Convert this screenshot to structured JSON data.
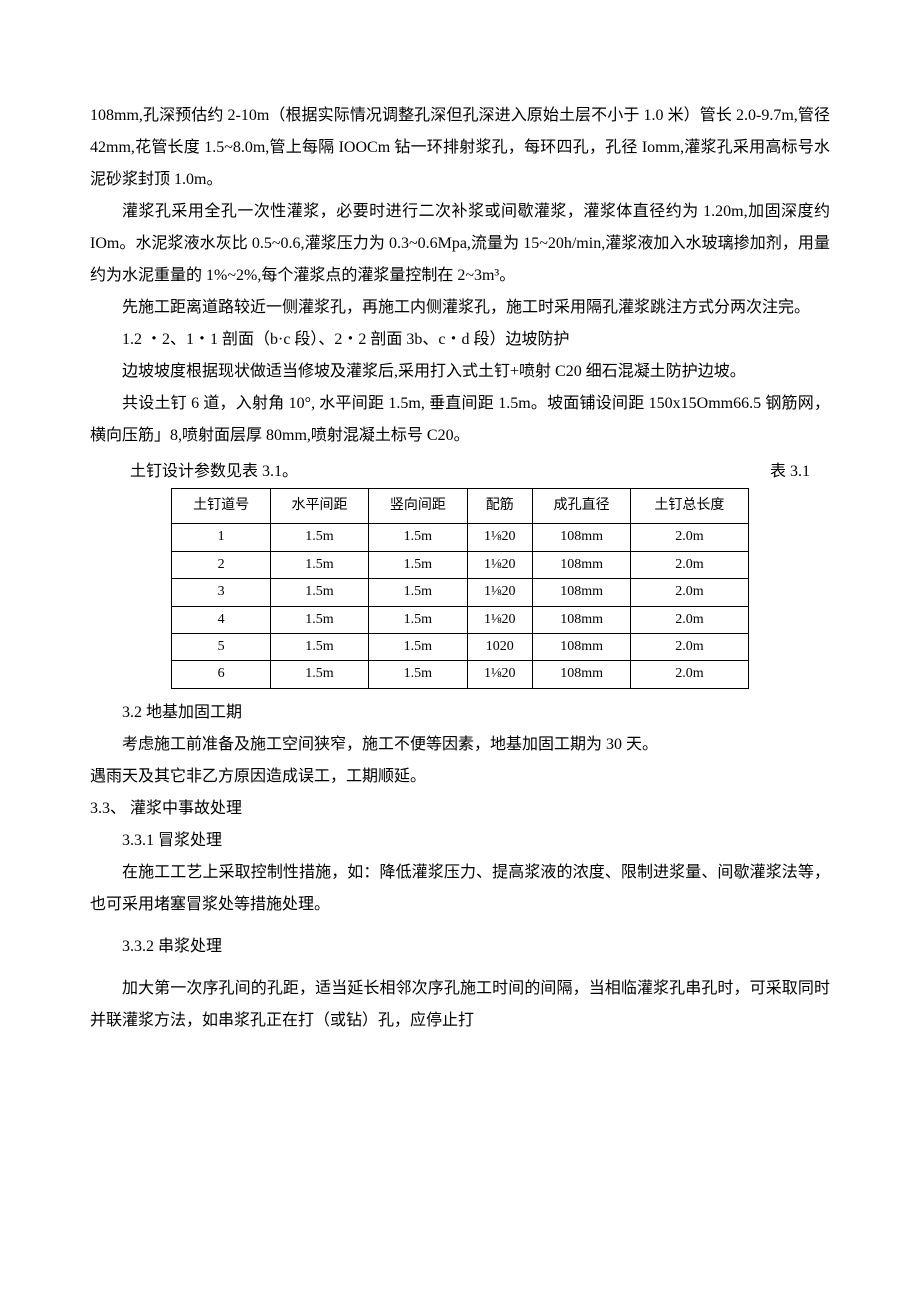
{
  "paragraphs": {
    "p1": "108mm,孔深预估约 2-10m（根据实际情况调整孔深但孔深进入原始土层不小于 1.0 米）管长 2.0-9.7m,管径 42mm,花管长度 1.5~8.0m,管上每隔 IOOCm 钻一环排射浆孔，每环四孔，孔径 Iomm,灌浆孔采用高标号水泥砂浆封顶 1.0m。",
    "p2": "灌浆孔采用全孔一次性灌浆，必要时进行二次补浆或间歇灌浆，灌浆体直径约为 1.20m,加固深度约 IOm。水泥浆液水灰比 0.5~0.6,灌浆压力为 0.3~0.6Mpa,流量为 15~20h/min,灌浆液加入水玻璃掺加剂，用量约为水泥重量的 1%~2%,每个灌浆点的灌浆量控制在 2~3m³。",
    "p3": "先施工距离道路较近一侧灌浆孔，再施工内侧灌浆孔，施工时采用隔孔灌浆跳注方式分两次注完。",
    "p4": "1.2  ・2、1・1 剖面（b·c 段）、2・2 剖面 3b、c・d 段）边坡防护",
    "p5": "边坡坡度根据现状做适当修坡及灌浆后,采用打入式土钉+喷射 C20 细石混凝土防护边坡。",
    "p6": "共设土钉 6 道，入射角 10°, 水平间距 1.5m, 垂直间距 1.5m。坡面铺设间距 150x15Omm66.5 钢筋网，横向压筋」8,喷射面层厚 80mm,喷射混凝土标号 C20。"
  },
  "tableCaption": {
    "left": "土钉设计参数见表 3.1。",
    "right": "表 3.1"
  },
  "table": {
    "headers": [
      "土钉道号",
      "水平间距",
      "竖向间距",
      "配筋",
      "成孔直径",
      "土钉总长度"
    ],
    "rows": [
      [
        "1",
        "1.5m",
        "1.5m",
        "1⅛20",
        "108mm",
        "2.0m"
      ],
      [
        "2",
        "1.5m",
        "1.5m",
        "1⅛20",
        "108mm",
        "2.0m"
      ],
      [
        "3",
        "1.5m",
        "1.5m",
        "1⅛20",
        "108mm",
        "2.0m"
      ],
      [
        "4",
        "1.5m",
        "1.5m",
        "1⅛20",
        "108mm",
        "2.0m"
      ],
      [
        "5",
        "1.5m",
        "1.5m",
        "1020",
        "108mm",
        "2.0m"
      ],
      [
        "6",
        "1.5m",
        "1.5m",
        "1⅛20",
        "108mm",
        "2.0m"
      ]
    ]
  },
  "after": {
    "a1": "3.2 地基加固工期",
    "a2": "考虑施工前准备及施工空间狭窄，施工不便等因素，地基加固工期为 30 天。",
    "a3": "遇雨天及其它非乙方原因造成误工，工期顺延。",
    "a4": "3.3、 灌浆中事故处理",
    "a5": "3.3.1  冒浆处理",
    "a6": "在施工工艺上采取控制性措施，如：降低灌浆压力、提高浆液的浓度、限制进浆量、间歇灌浆法等，也可采用堵塞冒浆处等措施处理。",
    "a7": "3.3.2  串浆处理",
    "a8": "加大第一次序孔间的孔距，适当延长相邻次序孔施工时间的间隔，当相临灌浆孔串孔时，可采取同时并联灌浆方法，如串浆孔正在打（或钻）孔，应停止打"
  }
}
